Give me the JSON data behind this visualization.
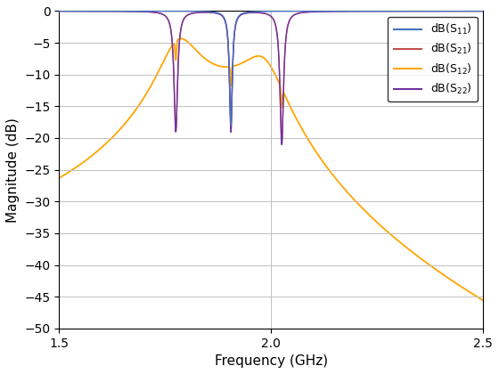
{
  "title": "",
  "xlabel": "Frequency (GHz)",
  "ylabel": "Magnitude (dB)",
  "xlim": [
    1.5,
    2.5
  ],
  "ylim": [
    -50,
    0
  ],
  "yticks": [
    0,
    -5,
    -10,
    -15,
    -20,
    -25,
    -30,
    -35,
    -40,
    -45,
    -50
  ],
  "xticks": [
    1.5,
    2.0,
    2.5
  ],
  "legend_labels": [
    "dB(S$_{11}$)",
    "dB(S$_{21}$)",
    "dB(S$_{12}$)",
    "dB(S$_{22}$)"
  ],
  "colors": {
    "S11": "#4472C4",
    "S21": "#C0504D",
    "S12": "#FFA500",
    "S22": "#7030A0"
  },
  "figsize": [
    5.6,
    4.2
  ],
  "dpi": 100,
  "f_start": 1.5,
  "f_end": 2.5,
  "n_points": 10000
}
